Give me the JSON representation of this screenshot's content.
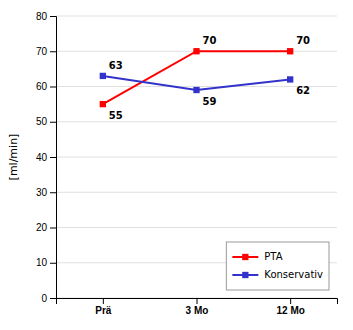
{
  "chart_data": {
    "type": "line",
    "categories": [
      "Prä",
      "3 Mo",
      "12 Mo"
    ],
    "series": [
      {
        "name": "PTA",
        "color": "#FF0000",
        "marker": "square",
        "values": [
          55,
          70,
          70
        ]
      },
      {
        "name": "Konservativ",
        "color": "#3333CC",
        "marker": "square",
        "values": [
          63,
          59,
          62
        ]
      }
    ],
    "ylabel": "[ml/min]",
    "ylim": [
      0,
      80
    ],
    "yticks": [
      0,
      10,
      20,
      30,
      40,
      50,
      60,
      70,
      80
    ],
    "grid": true,
    "legend": "lower right",
    "data_labels": true
  }
}
